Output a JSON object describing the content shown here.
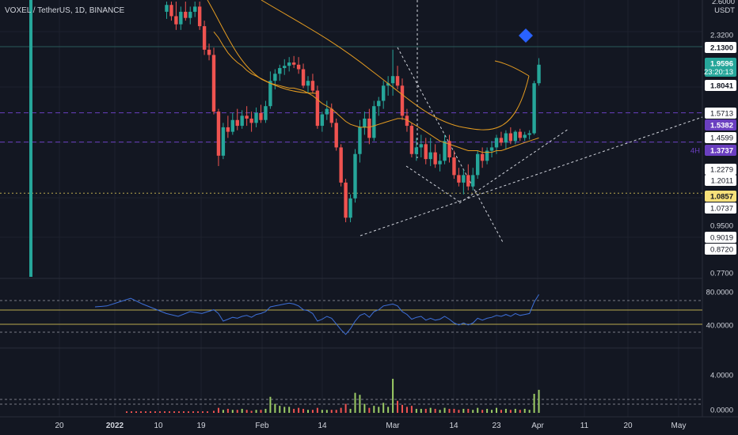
{
  "symbol": {
    "label": "VOXEL / TetherUS, 1D, BINANCE"
  },
  "price_axis": {
    "currency": "USDT",
    "top_partial": "2.6000",
    "labels": [
      "2.3200",
      "1.5713",
      "1.4599",
      "1.2279",
      "1.2011",
      "1.0737",
      "0.9500",
      "0.9019",
      "0.8720",
      "0.7700"
    ],
    "tags": [
      {
        "text": "2.1300",
        "style": "white",
        "price": 2.13
      },
      {
        "text": "1.9596",
        "sub": "23:20:13",
        "style": "green",
        "price": 1.9596
      },
      {
        "text": "1.8041",
        "style": "white",
        "price": 1.8041
      },
      {
        "text": "1.5382",
        "style": "purple",
        "price": 1.5382
      },
      {
        "text": "1.3737",
        "style": "purple",
        "prefix": "4H",
        "price": 1.3737
      },
      {
        "text": "1.0857",
        "style": "yellow",
        "price": 1.0857
      }
    ]
  },
  "rsi_axis": {
    "labels": [
      "80.0000",
      "40.0000"
    ]
  },
  "volume_axis": {
    "labels": [
      "4.0000",
      "0.0000"
    ]
  },
  "x_axis": {
    "labels": [
      "20",
      "2022",
      "10",
      "19",
      "Feb",
      "14",
      "Mar",
      "14",
      "23",
      "Apr",
      "11",
      "20",
      "May"
    ]
  },
  "colors": {
    "up": "#26a69a",
    "down": "#ef5350",
    "ma": "#e39b21",
    "rsi": "#3d6fd8",
    "bg": "#131722",
    "grid": "#1e222d",
    "purple": "#6a3fc0",
    "yellow": "#f7e07a"
  },
  "chart_data": {
    "type": "candlestick",
    "title": "VOXEL / TetherUS, 1D, BINANCE",
    "x_dates": [
      "2022-01-19",
      "2022-01-20",
      "2022-01-21",
      "2022-01-22",
      "2022-01-23",
      "2022-01-24",
      "2022-01-25",
      "2022-01-26",
      "2022-01-27",
      "2022-01-28",
      "2022-01-29",
      "2022-01-30",
      "2022-01-31",
      "2022-02-01",
      "2022-02-02",
      "2022-02-03",
      "2022-02-04",
      "2022-02-05",
      "2022-02-06",
      "2022-02-07",
      "2022-02-08",
      "2022-02-09",
      "2022-02-10",
      "2022-02-11",
      "2022-02-12",
      "2022-02-13",
      "2022-02-14",
      "2022-02-15",
      "2022-02-16",
      "2022-02-17",
      "2022-02-18",
      "2022-02-19",
      "2022-02-20",
      "2022-02-21",
      "2022-02-22",
      "2022-02-23",
      "2022-02-24",
      "2022-02-25",
      "2022-02-26",
      "2022-02-27",
      "2022-02-28",
      "2022-03-01",
      "2022-03-02",
      "2022-03-03",
      "2022-03-04",
      "2022-03-05",
      "2022-03-06",
      "2022-03-07",
      "2022-03-08",
      "2022-03-09",
      "2022-03-10",
      "2022-03-11",
      "2022-03-12",
      "2022-03-13",
      "2022-03-14",
      "2022-03-15",
      "2022-03-16",
      "2022-03-17",
      "2022-03-18",
      "2022-03-19",
      "2022-03-20",
      "2022-03-21",
      "2022-03-22",
      "2022-03-23",
      "2022-03-24",
      "2022-03-25",
      "2022-03-26",
      "2022-03-27",
      "2022-03-28",
      "2022-03-29"
    ],
    "candles": [
      [
        2.05,
        2.12,
        1.56,
        1.58
      ],
      [
        1.58,
        1.6,
        1.23,
        1.29
      ],
      [
        1.29,
        1.5,
        1.27,
        1.47
      ],
      [
        1.47,
        1.55,
        1.4,
        1.44
      ],
      [
        1.44,
        1.57,
        1.42,
        1.52
      ],
      [
        1.52,
        1.6,
        1.45,
        1.48
      ],
      [
        1.48,
        1.59,
        1.46,
        1.55
      ],
      [
        1.55,
        1.62,
        1.48,
        1.53
      ],
      [
        1.53,
        1.58,
        1.44,
        1.5
      ],
      [
        1.5,
        1.61,
        1.47,
        1.57
      ],
      [
        1.57,
        1.63,
        1.5,
        1.52
      ],
      [
        1.52,
        1.66,
        1.5,
        1.62
      ],
      [
        1.62,
        1.9,
        1.6,
        1.82
      ],
      [
        1.82,
        1.92,
        1.75,
        1.88
      ],
      [
        1.88,
        1.96,
        1.82,
        1.93
      ],
      [
        1.93,
        2.01,
        1.87,
        1.95
      ],
      [
        1.95,
        2.03,
        1.9,
        1.98
      ],
      [
        1.98,
        2.04,
        1.93,
        1.96
      ],
      [
        1.96,
        2.03,
        1.88,
        1.92
      ],
      [
        1.92,
        1.97,
        1.76,
        1.78
      ],
      [
        1.78,
        1.86,
        1.72,
        1.82
      ],
      [
        1.82,
        1.88,
        1.72,
        1.74
      ],
      [
        1.74,
        1.78,
        1.46,
        1.48
      ],
      [
        1.48,
        1.58,
        1.44,
        1.56
      ],
      [
        1.56,
        1.66,
        1.52,
        1.6
      ],
      [
        1.6,
        1.64,
        1.47,
        1.5
      ],
      [
        1.5,
        1.53,
        1.32,
        1.34
      ],
      [
        1.34,
        1.36,
        1.12,
        1.14
      ],
      [
        1.14,
        1.16,
        0.95,
        0.97
      ],
      [
        0.97,
        1.08,
        0.95,
        1.06
      ],
      [
        1.06,
        1.33,
        1.04,
        1.3
      ],
      [
        1.3,
        1.52,
        1.25,
        1.47
      ],
      [
        1.47,
        1.58,
        1.42,
        1.53
      ],
      [
        1.53,
        1.6,
        1.36,
        1.4
      ],
      [
        1.4,
        1.66,
        1.38,
        1.62
      ],
      [
        1.62,
        1.69,
        1.55,
        1.66
      ],
      [
        1.66,
        1.82,
        1.6,
        1.78
      ],
      [
        1.78,
        1.86,
        1.7,
        1.8
      ],
      [
        1.8,
        2.1,
        1.7,
        1.86
      ],
      [
        1.86,
        1.95,
        1.75,
        1.78
      ],
      [
        1.78,
        1.84,
        1.52,
        1.55
      ],
      [
        1.55,
        1.6,
        1.44,
        1.48
      ],
      [
        1.48,
        1.5,
        1.28,
        1.3
      ],
      [
        1.3,
        1.4,
        1.26,
        1.34
      ],
      [
        1.34,
        1.42,
        1.28,
        1.36
      ],
      [
        1.36,
        1.4,
        1.24,
        1.27
      ],
      [
        1.27,
        1.4,
        1.23,
        1.31
      ],
      [
        1.31,
        1.36,
        1.22,
        1.24
      ],
      [
        1.24,
        1.3,
        1.2,
        1.26
      ],
      [
        1.26,
        1.42,
        1.24,
        1.38
      ],
      [
        1.38,
        1.42,
        1.25,
        1.28
      ],
      [
        1.28,
        1.32,
        1.16,
        1.18
      ],
      [
        1.18,
        1.22,
        1.12,
        1.14
      ],
      [
        1.14,
        1.21,
        1.08,
        1.18
      ],
      [
        1.18,
        1.24,
        1.1,
        1.12
      ],
      [
        1.12,
        1.22,
        1.1,
        1.18
      ],
      [
        1.18,
        1.32,
        1.16,
        1.3
      ],
      [
        1.3,
        1.34,
        1.22,
        1.26
      ],
      [
        1.26,
        1.34,
        1.24,
        1.32
      ],
      [
        1.32,
        1.38,
        1.28,
        1.34
      ],
      [
        1.34,
        1.42,
        1.3,
        1.4
      ],
      [
        1.4,
        1.44,
        1.35,
        1.37
      ],
      [
        1.37,
        1.45,
        1.33,
        1.43
      ],
      [
        1.43,
        1.47,
        1.36,
        1.38
      ],
      [
        1.38,
        1.45,
        1.36,
        1.44
      ],
      [
        1.44,
        1.46,
        1.38,
        1.4
      ],
      [
        1.4,
        1.44,
        1.38,
        1.42
      ],
      [
        1.42,
        1.45,
        1.39,
        1.43
      ],
      [
        1.43,
        1.82,
        1.42,
        1.8
      ],
      [
        1.8,
        2.02,
        1.78,
        1.96
      ]
    ],
    "ma_values": [
      2.28,
      2.22,
      2.14,
      2.07,
      2.02,
      1.98,
      1.95,
      1.91,
      1.88,
      1.86,
      1.84,
      1.82,
      1.8,
      1.79,
      1.78,
      1.77,
      1.76,
      1.76,
      1.75,
      1.74,
      1.72,
      1.7,
      1.67,
      1.64,
      1.62,
      1.6,
      1.57,
      1.54,
      1.51,
      1.49,
      1.48,
      1.47,
      1.47,
      1.47,
      1.48,
      1.49,
      1.5,
      1.51,
      1.52,
      1.53,
      1.53,
      1.52,
      1.5,
      1.48,
      1.46,
      1.44,
      1.42,
      1.4,
      1.38,
      1.37,
      1.36,
      1.35,
      1.34,
      1.33,
      1.32,
      1.32,
      1.32,
      1.31,
      1.31,
      1.31,
      1.32,
      1.32,
      1.33,
      1.34,
      1.35,
      1.36,
      1.37,
      1.38,
      1.39,
      1.4
    ],
    "rsi": [
      62,
      58,
      50,
      52,
      54,
      53,
      55,
      56,
      54,
      57,
      58,
      60,
      65,
      66,
      67,
      68,
      69,
      68,
      66,
      62,
      61,
      58,
      50,
      52,
      55,
      53,
      47,
      41,
      36,
      42,
      50,
      56,
      58,
      54,
      60,
      62,
      66,
      67,
      68,
      66,
      60,
      57,
      52,
      54,
      55,
      51,
      53,
      51,
      52,
      55,
      52,
      48,
      46,
      48,
      46,
      48,
      53,
      51,
      53,
      54,
      56,
      55,
      57,
      55,
      58,
      56,
      57,
      58,
      70,
      78
    ],
    "volume": [
      0.2,
      0.5,
      0.3,
      0.4,
      0.3,
      0.3,
      0.4,
      0.3,
      0.2,
      0.3,
      0.3,
      0.4,
      1.6,
      0.9,
      0.7,
      0.6,
      0.6,
      0.4,
      0.5,
      0.4,
      0.3,
      0.3,
      0.5,
      0.3,
      0.3,
      0.3,
      0.3,
      0.5,
      0.9,
      0.4,
      2.0,
      1.8,
      0.9,
      0.5,
      0.7,
      0.6,
      1.0,
      0.6,
      3.4,
      1.2,
      0.8,
      0.6,
      0.7,
      0.4,
      0.4,
      0.4,
      0.5,
      0.4,
      0.3,
      0.5,
      0.4,
      0.4,
      0.3,
      0.4,
      0.4,
      0.3,
      0.5,
      0.3,
      0.4,
      0.3,
      0.5,
      0.3,
      0.4,
      0.3,
      0.4,
      0.3,
      0.4,
      0.3,
      1.9,
      2.3
    ],
    "rsi_levels": [
      80,
      40
    ],
    "price_range": [
      0.75,
      2.62
    ],
    "rsi_range": [
      25,
      90
    ],
    "volume_range": [
      0,
      6
    ]
  }
}
